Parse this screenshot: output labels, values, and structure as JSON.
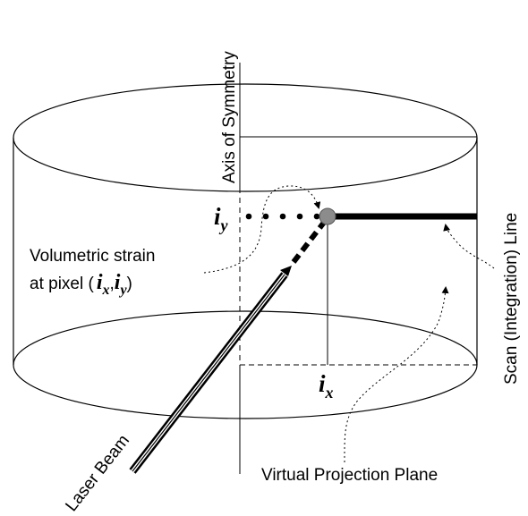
{
  "labels": {
    "axis_of_symmetry": "Axis of Symmetry",
    "scan_line": "Scan (Integration) Line",
    "laser_beam": "Laser Beam",
    "virtual_projection_plane": "Virtual Projection Plane",
    "volumetric_strain_line1": "Volumetric strain",
    "volumetric_strain_line2": "at pixel (",
    "i_letter": "i",
    "x_sub": "x",
    "y_sub": "y",
    "comma": ",",
    "close_paren": ")"
  }
}
